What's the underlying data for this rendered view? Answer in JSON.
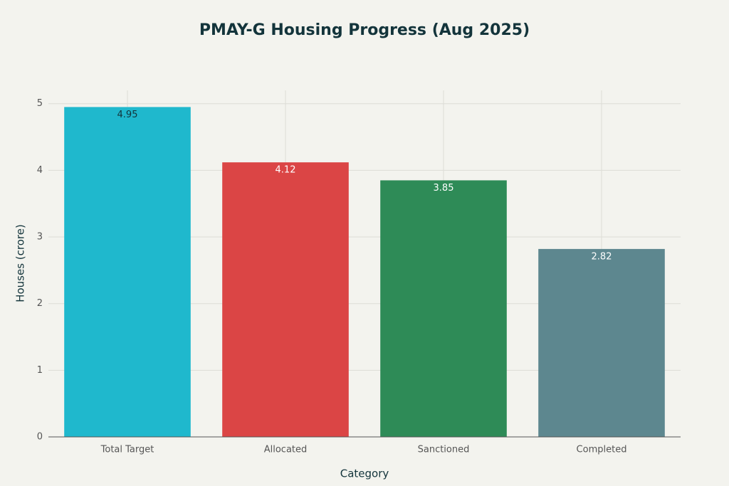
{
  "chart_data": {
    "type": "bar",
    "title": "PMAY-G Housing Progress (Aug 2025)",
    "x_label": "Category",
    "y_label": "Houses (crore)",
    "categories": [
      "Total Target",
      "Allocated",
      "Sanctioned",
      "Completed"
    ],
    "values": [
      4.95,
      4.12,
      3.85,
      2.82
    ],
    "colors": [
      "#1FB8CD",
      "#DB4545",
      "#2E8B57",
      "#5D878F"
    ],
    "ylim": [
      0,
      5.2
    ],
    "yticks": [
      0,
      1,
      2,
      3,
      4,
      5
    ],
    "grid": true
  }
}
